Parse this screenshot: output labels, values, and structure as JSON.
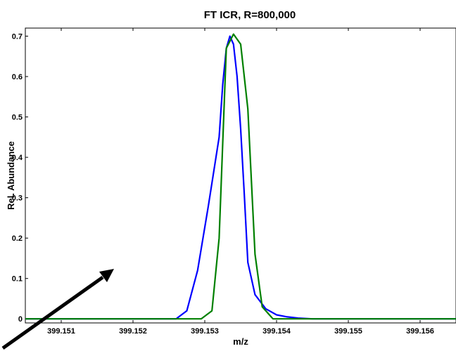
{
  "chart_data": {
    "type": "line",
    "title": "FT ICR, R=800,000",
    "xlabel": "m/z",
    "ylabel": "Rel. Abundance",
    "xlim": [
      399.1505,
      399.1565
    ],
    "ylim": [
      -0.01,
      0.72
    ],
    "x_ticks": [
      399.151,
      399.152,
      399.153,
      399.154,
      399.155,
      399.156
    ],
    "x_tick_labels": [
      "399.151",
      "399.152",
      "399.153",
      "399.154",
      "399.155",
      "399.156"
    ],
    "y_ticks": [
      0,
      0.1,
      0.2,
      0.3,
      0.4,
      0.5,
      0.6,
      0.7
    ],
    "y_tick_labels": [
      "0",
      "0.1",
      "0.2",
      "0.3",
      "0.4",
      "0.5",
      "0.6",
      "0.7"
    ],
    "grid": false,
    "legend": "none",
    "series": [
      {
        "color": "#0000ff",
        "x": [
          399.1505,
          399.1526,
          399.15275,
          399.1529,
          399.15305,
          399.1532,
          399.15325,
          399.1533,
          399.15335,
          399.1534,
          399.15345,
          399.1535,
          399.15355,
          399.1536,
          399.1537,
          399.15385,
          399.154,
          399.15415,
          399.1543,
          399.1545,
          399.1547,
          399.1565
        ],
        "y": [
          0.0,
          0.0,
          0.02,
          0.12,
          0.28,
          0.45,
          0.58,
          0.67,
          0.7,
          0.68,
          0.6,
          0.47,
          0.31,
          0.14,
          0.06,
          0.025,
          0.01,
          0.005,
          0.002,
          0.0,
          0.0,
          0.0
        ]
      },
      {
        "color": "#008000",
        "x": [
          399.1505,
          399.15295,
          399.1531,
          399.1532,
          399.1533,
          399.1534,
          399.1535,
          399.1536,
          399.1537,
          399.1538,
          399.15395,
          399.1565
        ],
        "y": [
          0.0,
          0.0,
          0.02,
          0.2,
          0.67,
          0.705,
          0.68,
          0.52,
          0.16,
          0.03,
          0.0,
          0.0
        ]
      }
    ]
  }
}
